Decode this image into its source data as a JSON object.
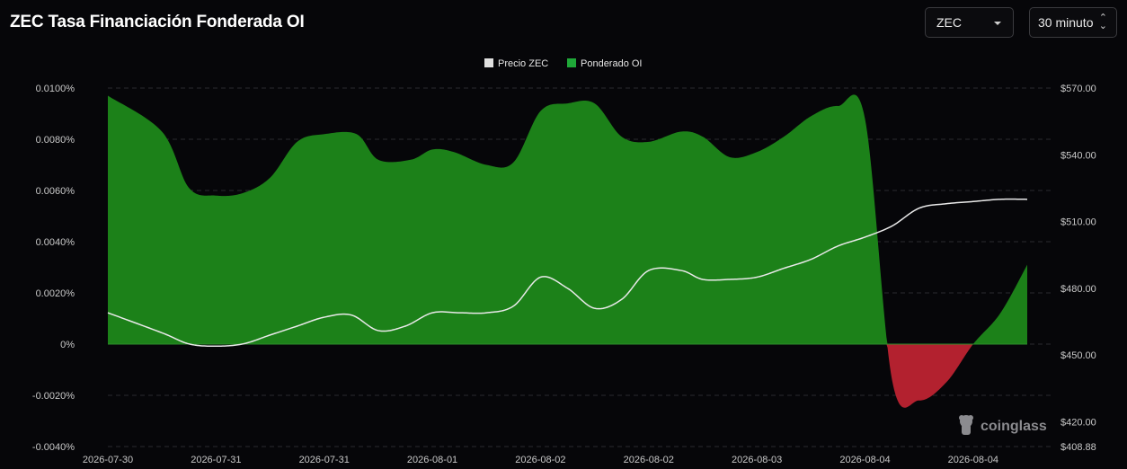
{
  "header": {
    "title": "ZEC Tasa Financiación Fonderada OI",
    "symbol_select": "ZEC",
    "interval_select": "30 minuto"
  },
  "watermark": {
    "text": "coinglass",
    "icon": "coinglass-logo-icon"
  },
  "colors": {
    "positive": "#1c8119",
    "negative": "#b3212f",
    "price_line": "#e9e9e9",
    "background": "#060609",
    "grid": "#2a2a2e"
  },
  "chart_data": {
    "type": "area",
    "legend": [
      {
        "name": "Precio ZEC",
        "color": "#e0e0e0"
      },
      {
        "name": "Ponderado OI",
        "color": "#1fa838"
      }
    ],
    "legend_position": "top-center",
    "grid": true,
    "x_tick_labels": [
      "2026-07-30",
      "2026-07-31",
      "2026-07-31",
      "2026-08-01",
      "2026-08-02",
      "2026-08-02",
      "2026-08-03",
      "2026-08-04",
      "2026-08-04"
    ],
    "y_left": {
      "ticks": [
        "0.0100%",
        "0.0080%",
        "0.0060%",
        "0.0040%",
        "0.0020%",
        "0%",
        "-0.0020%",
        "-0.0040%"
      ],
      "range": [
        -0.004,
        0.01
      ],
      "unit": "%"
    },
    "y_right": {
      "ticks": [
        "$570.00",
        "$540.00",
        "$510.00",
        "$480.00",
        "$450.00",
        "$420.00",
        "$408.88"
      ],
      "range": [
        408.88,
        570
      ]
    },
    "x_index_range": [
      0,
      17
    ],
    "series": [
      {
        "name": "Ponderado OI",
        "axis": "left",
        "x": [
          0,
          1,
          1.5,
          2,
          2.5,
          3,
          3.5,
          4,
          4.6,
          5,
          5.6,
          6,
          6.4,
          7,
          7.5,
          8,
          8.5,
          9,
          9.5,
          10,
          10.6,
          11,
          11.5,
          12,
          12.5,
          13,
          13.5,
          14,
          14.5,
          15,
          15.5,
          16,
          16.5,
          17
        ],
        "values": [
          0.0097,
          0.0083,
          0.0061,
          0.0058,
          0.0059,
          0.0065,
          0.0079,
          0.0082,
          0.0082,
          0.0072,
          0.0072,
          0.0076,
          0.0075,
          0.007,
          0.0071,
          0.0091,
          0.0094,
          0.0094,
          0.0081,
          0.0079,
          0.0083,
          0.0081,
          0.0073,
          0.0075,
          0.0081,
          0.0089,
          0.0093,
          0.0088,
          -0.0014,
          -0.0022,
          -0.0015,
          0.0,
          0.0012,
          0.0031
        ]
      },
      {
        "name": "Precio ZEC",
        "axis": "right",
        "x": [
          0,
          1,
          1.5,
          2,
          2.5,
          3,
          3.5,
          4,
          4.5,
          5,
          5.5,
          6,
          6.5,
          7,
          7.5,
          8,
          8.5,
          9,
          9.5,
          10,
          10.6,
          11,
          11.5,
          12,
          12.5,
          13,
          13.5,
          14,
          14.5,
          15,
          15.5,
          16,
          16.5,
          17
        ],
        "values": [
          469,
          460,
          455,
          454,
          455,
          459,
          463,
          467,
          468,
          461,
          463,
          469,
          469,
          469,
          472,
          485,
          480,
          471,
          475,
          488,
          488,
          484,
          484,
          485,
          489,
          493,
          499,
          503,
          508,
          516,
          518,
          519,
          520,
          520
        ]
      }
    ]
  }
}
